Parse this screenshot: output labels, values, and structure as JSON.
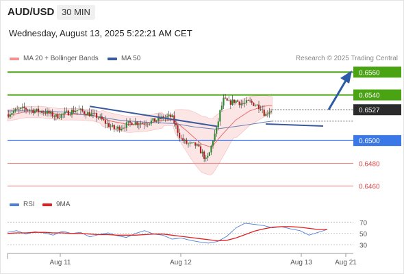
{
  "header": {
    "pair": "AUD/USD",
    "timeframe": "30 MIN",
    "datetime": "Wednesday, August 13, 2025 5:22:21 AM CET"
  },
  "legend": {
    "bollinger": {
      "label": "MA 20 + Bollinger Bands",
      "color": "#f19191"
    },
    "ma50": {
      "label": "MA 50",
      "color": "#3a5a9c"
    },
    "credit": "Research © 2025 Trading Central"
  },
  "rsi_legend": {
    "rsi": {
      "label": "RSI",
      "color": "#4f7fd4"
    },
    "ma9": {
      "label": "9MA",
      "color": "#e02020"
    }
  },
  "chart_data": [
    {
      "type": "candlestick",
      "title": "AUD/USD",
      "x_ticks": [
        "Aug 11",
        "Aug 12",
        "Aug 13",
        "Aug 21"
      ],
      "ylim": [
        0.6452,
        0.6568
      ],
      "current_price": {
        "label": "0.6527",
        "value": 0.6527
      },
      "levels": [
        {
          "label": "0.6560",
          "value": 0.656,
          "color": "#4aa312",
          "kind": "resistance"
        },
        {
          "label": "0.6540",
          "value": 0.654,
          "color": "#4aa312",
          "kind": "resistance"
        },
        {
          "label": "0.6500",
          "value": 0.65,
          "color": "#3b78e7",
          "kind": "pivot"
        },
        {
          "label": "0.6480",
          "value": 0.648,
          "color": "#f08a8a",
          "kind": "support"
        },
        {
          "label": "0.6460",
          "value": 0.646,
          "color": "#f08a8a",
          "kind": "support"
        }
      ],
      "trendlines": [
        {
          "points": [
            [
              0.02,
              0.653
            ],
            [
              0.395,
              0.6522
            ]
          ],
          "color": "#3a5a9c"
        }
      ],
      "price_path": [
        [
          0.0,
          0.6523
        ],
        [
          0.02,
          0.6526
        ],
        [
          0.05,
          0.6528
        ],
        [
          0.08,
          0.6526
        ],
        [
          0.11,
          0.6525
        ],
        [
          0.14,
          0.6521
        ],
        [
          0.17,
          0.6524
        ],
        [
          0.2,
          0.6527
        ],
        [
          0.23,
          0.6524
        ],
        [
          0.26,
          0.6521
        ],
        [
          0.29,
          0.6514
        ],
        [
          0.31,
          0.651
        ],
        [
          0.33,
          0.6512
        ],
        [
          0.36,
          0.6516
        ],
        [
          0.39,
          0.6515
        ],
        [
          0.42,
          0.6517
        ],
        [
          0.45,
          0.652
        ],
        [
          0.475,
          0.6521
        ],
        [
          0.49,
          0.651
        ],
        [
          0.5,
          0.6502
        ],
        [
          0.52,
          0.6497
        ],
        [
          0.545,
          0.6496
        ],
        [
          0.565,
          0.6488
        ],
        [
          0.575,
          0.6482
        ],
        [
          0.585,
          0.649
        ],
        [
          0.595,
          0.6502
        ],
        [
          0.605,
          0.651
        ],
        [
          0.615,
          0.6526
        ],
        [
          0.625,
          0.6536
        ],
        [
          0.64,
          0.6533
        ],
        [
          0.66,
          0.6535
        ],
        [
          0.68,
          0.6532
        ],
        [
          0.7,
          0.6534
        ],
        [
          0.72,
          0.6531
        ],
        [
          0.735,
          0.6529
        ],
        [
          0.745,
          0.6522
        ],
        [
          0.755,
          0.6526
        ],
        [
          0.765,
          0.6527
        ]
      ],
      "ma20_path": [
        [
          0.0,
          0.6522
        ],
        [
          0.05,
          0.6525
        ],
        [
          0.1,
          0.6525
        ],
        [
          0.15,
          0.6523
        ],
        [
          0.2,
          0.6523
        ],
        [
          0.25,
          0.6522
        ],
        [
          0.3,
          0.6517
        ],
        [
          0.35,
          0.6514
        ],
        [
          0.4,
          0.6515
        ],
        [
          0.45,
          0.6518
        ],
        [
          0.48,
          0.6518
        ],
        [
          0.52,
          0.6508
        ],
        [
          0.56,
          0.6497
        ],
        [
          0.59,
          0.6494
        ],
        [
          0.62,
          0.6505
        ],
        [
          0.66,
          0.6518
        ],
        [
          0.7,
          0.6526
        ],
        [
          0.74,
          0.653
        ],
        [
          0.765,
          0.6531
        ]
      ],
      "ma50_path": [
        [
          0.0,
          0.6526
        ],
        [
          0.08,
          0.6526
        ],
        [
          0.16,
          0.6525
        ],
        [
          0.24,
          0.6522
        ],
        [
          0.32,
          0.6518
        ],
        [
          0.4,
          0.6516
        ],
        [
          0.48,
          0.6515
        ],
        [
          0.54,
          0.6512
        ],
        [
          0.6,
          0.651
        ],
        [
          0.65,
          0.6512
        ],
        [
          0.7,
          0.6514
        ],
        [
          0.74,
          0.6516
        ],
        [
          0.765,
          0.6517
        ]
      ]
    },
    {
      "type": "line",
      "title": "RSI",
      "ylim": [
        22,
        80
      ],
      "y_ticks": [
        70,
        50,
        30
      ],
      "series": [
        {
          "name": "RSI",
          "color": "#4f7fd4",
          "values": [
            52,
            55,
            49,
            53,
            51,
            47,
            54,
            50,
            52,
            44,
            48,
            51,
            46,
            43,
            50,
            55,
            49,
            47,
            40,
            42,
            38,
            35,
            33,
            36,
            45,
            60,
            68,
            66,
            64,
            60,
            62,
            58,
            55,
            47,
            52,
            57
          ]
        },
        {
          "name": "9MA",
          "color": "#e02020",
          "values": [
            50,
            51,
            51,
            52,
            52,
            51,
            51,
            50,
            50,
            49,
            48,
            48,
            47,
            47,
            47,
            48,
            49,
            49,
            47,
            45,
            43,
            41,
            39,
            37,
            38,
            42,
            48,
            54,
            58,
            61,
            62,
            62,
            61,
            59,
            57,
            57
          ]
        }
      ]
    }
  ]
}
